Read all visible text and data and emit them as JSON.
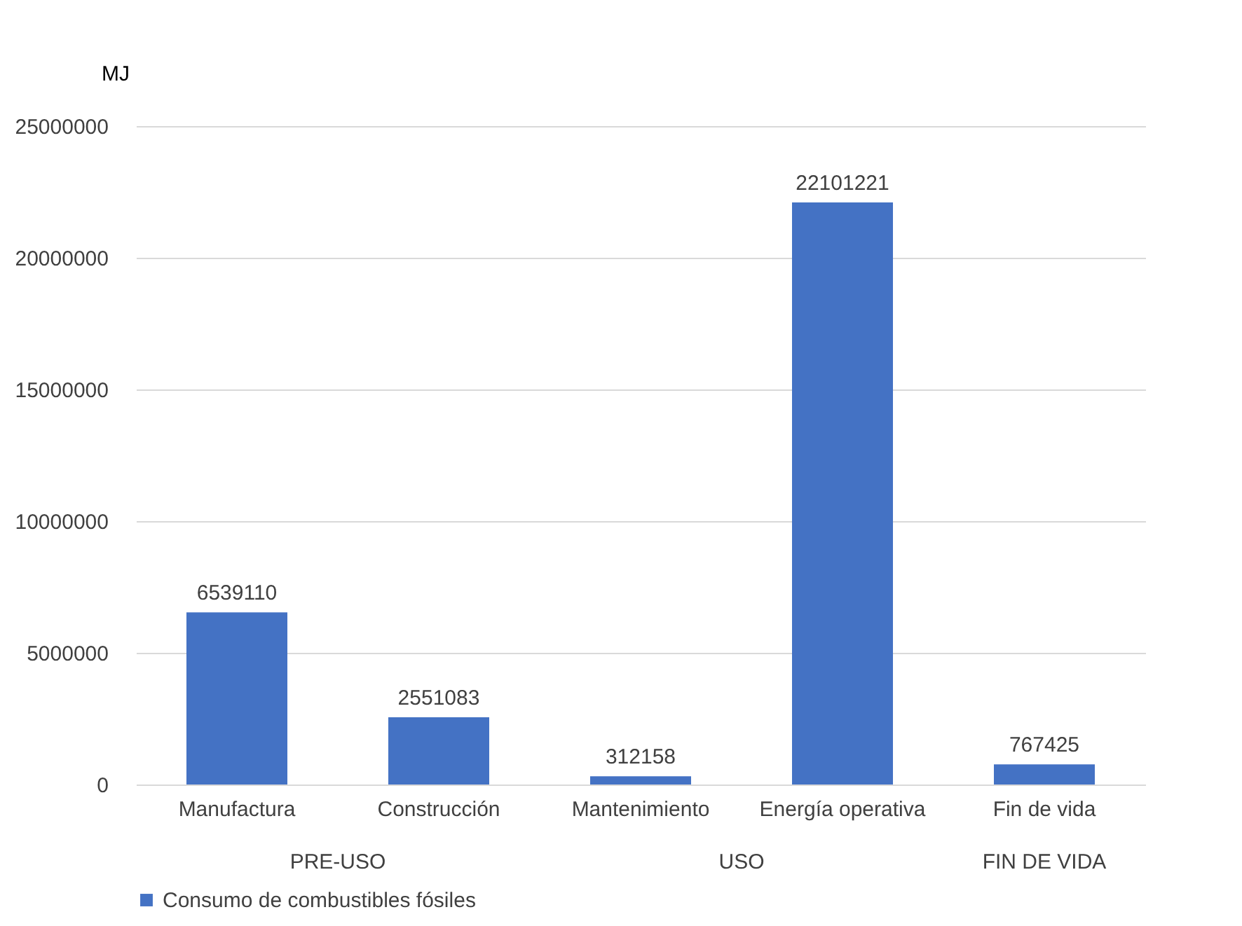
{
  "chart_data": {
    "type": "bar",
    "ylabel": "MJ",
    "categories": [
      "Manufactura",
      "Construcción",
      "Mantenimiento",
      "Energía operativa",
      "Fin de vida"
    ],
    "series": [
      {
        "name": "Consumo de combustibles fósiles",
        "color": "#4472c4",
        "values": [
          6539110,
          2551083,
          312158,
          22101221,
          767425
        ]
      }
    ],
    "ylim": [
      0,
      25000000
    ],
    "yticks": [
      0,
      5000000,
      10000000,
      15000000,
      20000000,
      25000000
    ],
    "grid": "y",
    "legend": "bottom",
    "data_labels": true,
    "annotations": [
      "PRE-USO",
      "USO",
      "FIN DE VIDA"
    ]
  }
}
